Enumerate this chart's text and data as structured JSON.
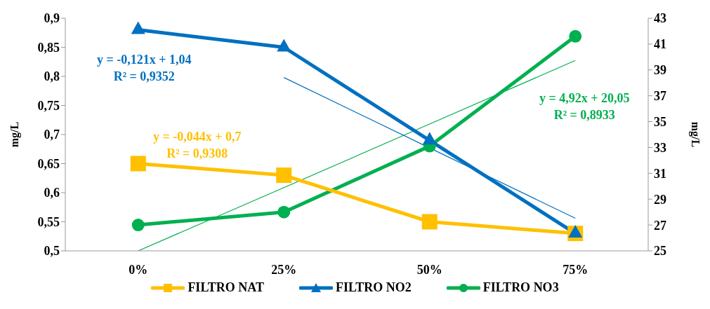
{
  "chart_data": {
    "type": "line",
    "categories": [
      "0%",
      "25%",
      "50%",
      "75%"
    ],
    "ylabel": "mg/L",
    "y2label": "mg/L",
    "ylim": [
      0.5,
      0.9
    ],
    "yticks": [
      {
        "value": 0.5,
        "label": "0,5"
      },
      {
        "value": 0.55,
        "label": "0,55"
      },
      {
        "value": 0.6,
        "label": "0,6"
      },
      {
        "value": 0.65,
        "label": "0,65"
      },
      {
        "value": 0.7,
        "label": "0,7"
      },
      {
        "value": 0.75,
        "label": "0,75"
      },
      {
        "value": 0.8,
        "label": "0,8"
      },
      {
        "value": 0.85,
        "label": "0,85"
      },
      {
        "value": 0.9,
        "label": "0,9"
      }
    ],
    "y2lim": [
      25,
      43
    ],
    "y2ticks": [
      25,
      27,
      29,
      31,
      33,
      35,
      37,
      39,
      41,
      43
    ],
    "series": [
      {
        "name": "FILTRO NAT",
        "color": "#ffc000",
        "marker": "square",
        "values": [
          0.65,
          0.63,
          0.55,
          0.53
        ]
      },
      {
        "name": "FILTRO NO2",
        "color": "#0070c0",
        "marker": "triangle",
        "values": [
          0.88,
          0.85,
          0.69,
          0.53
        ]
      },
      {
        "name": "FILTRO NO3",
        "color": "#00b050",
        "marker": "circle",
        "axis": "y2",
        "values": [
          27.0,
          28.0,
          33.1,
          41.6
        ]
      },
      {
        "type": "line",
        "color": "#0070c0",
        "marker": "none",
        "x": [
          "25%",
          "50%",
          "75%"
        ],
        "values": [
          0.798,
          0.677,
          0.556
        ]
      },
      {
        "type": "line",
        "color": "#00b050",
        "marker": "none",
        "axis": "y2",
        "x": [
          "0%",
          "25%",
          "50%",
          "75%"
        ],
        "values": [
          25,
          29.89,
          34.81,
          39.73
        ]
      }
    ],
    "annotations": [
      "y = -0,044x + 0,7\nR² = 0,9308",
      "y = -0,121x + 1,04\nR² = 0,9352",
      "y = 4,92x + 20,05\nR² = 0,8933"
    ],
    "legend": "bottom"
  }
}
